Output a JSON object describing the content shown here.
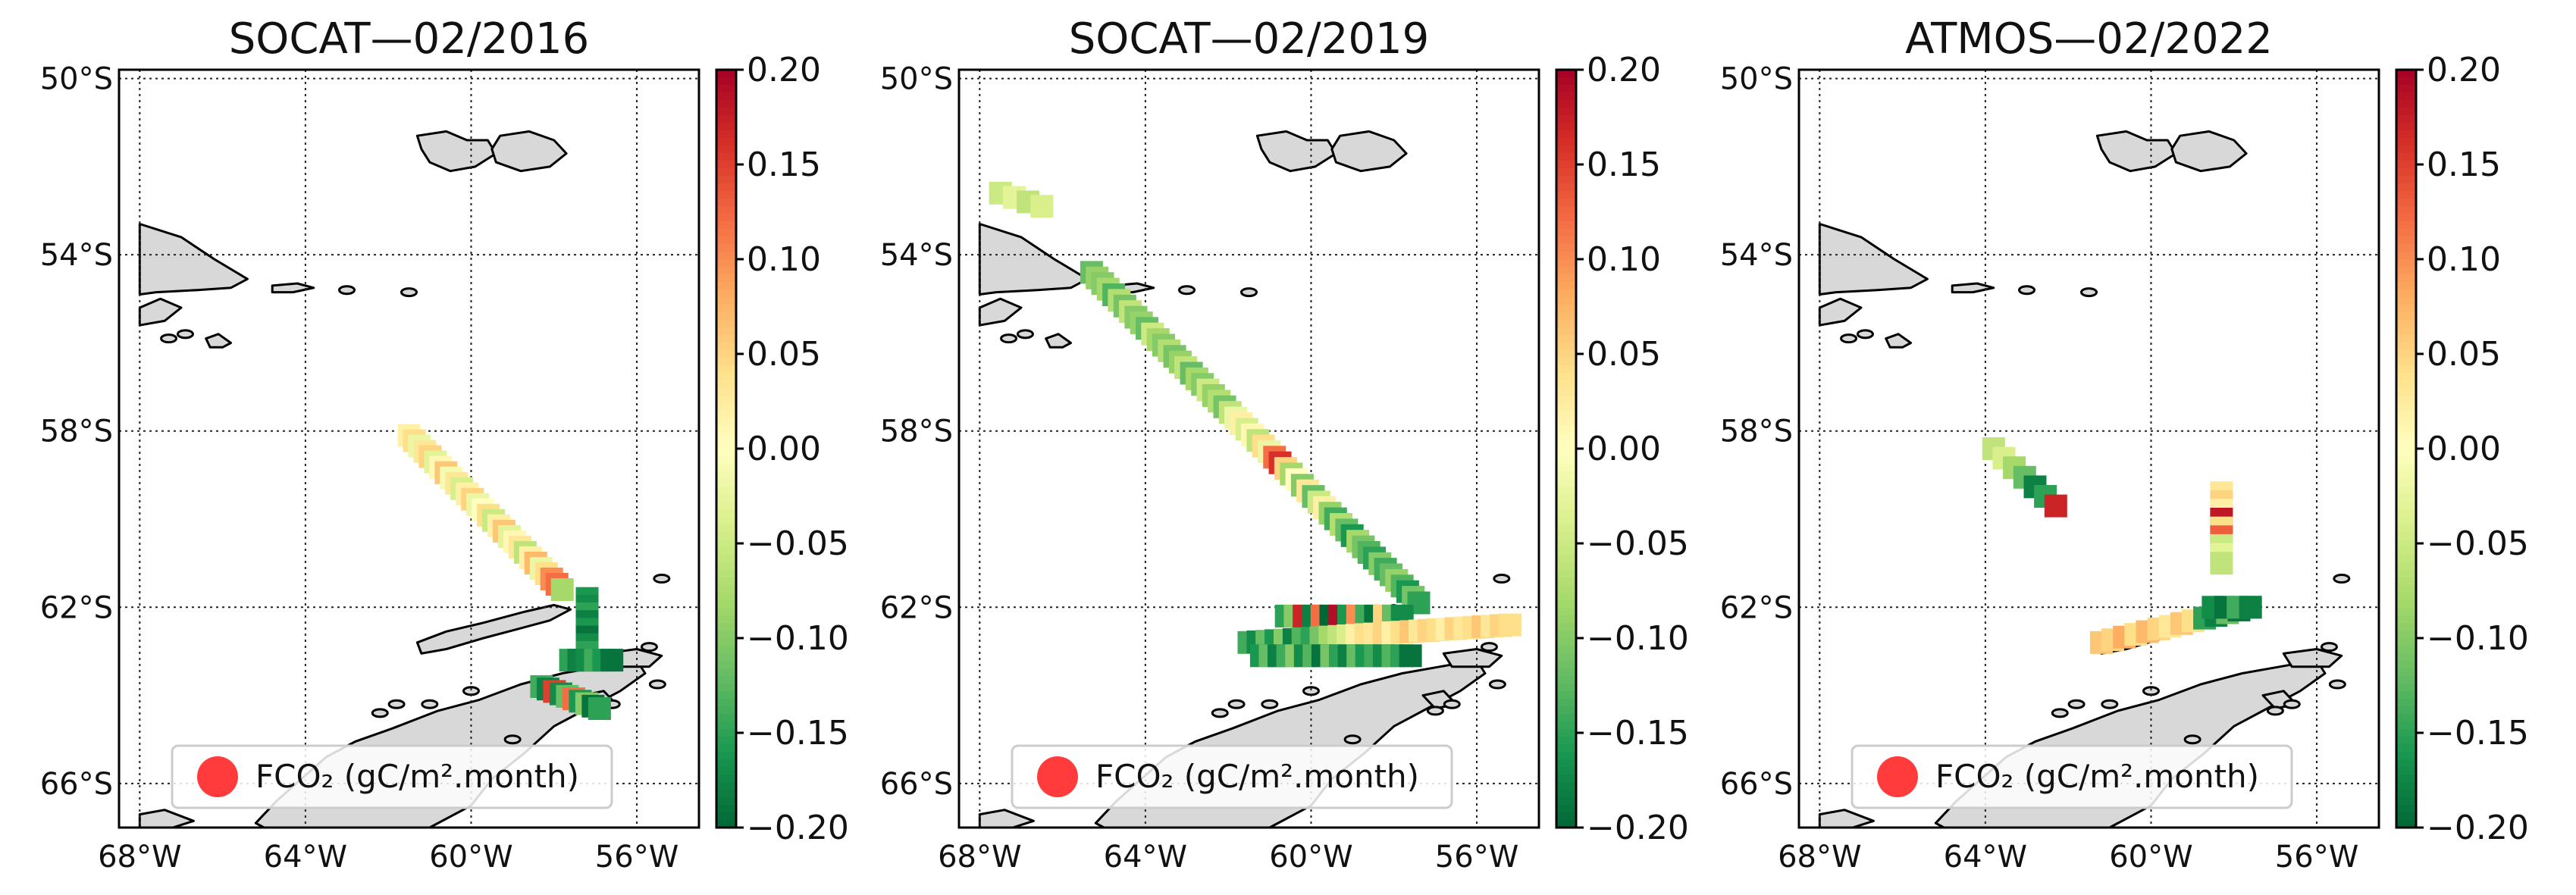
{
  "chart_data": [
    {
      "type": "map",
      "title": "SOCAT—02/2016",
      "x_ticks": [
        "68°W",
        "64°W",
        "60°W",
        "56°W"
      ],
      "y_ticks": [
        "50°S",
        "54°S",
        "58°S",
        "62°S",
        "66°S"
      ],
      "xlim": [
        -68,
        -55
      ],
      "ylim": [
        -67,
        -50
      ],
      "colorbar": {
        "label_ticks": [
          "0.20",
          "0.15",
          "0.10",
          "0.05",
          "0.00",
          "−0.05",
          "−0.10",
          "−0.15",
          "−0.20"
        ],
        "vmin": -0.2,
        "vmax": 0.2,
        "cmap": "RdYlGn"
      },
      "legend": "FCO₂ (gC/m².month)",
      "tracks": [
        {
          "lon_start": -61.5,
          "lat_start": -58.1,
          "lon_end": -57.8,
          "lat_end": -61.6,
          "n": 30,
          "values": [
            0.02,
            0.04,
            -0.02,
            0.03,
            0.05,
            -0.03,
            0.01,
            0.06,
            -0.01,
            0.03,
            -0.04,
            0.02,
            0.05,
            -0.02,
            0.0,
            0.04,
            -0.05,
            0.02,
            0.06,
            -0.03,
            0.01,
            0.03,
            -0.06,
            0.02,
            0.07,
            -0.02,
            0.04,
            0.1,
            0.12,
            -0.08
          ]
        },
        {
          "lon_start": -57.2,
          "lat_start": -61.8,
          "lon_end": -57.2,
          "lat_end": -63.2,
          "n": 9,
          "values": [
            -0.16,
            -0.17,
            -0.15,
            -0.18,
            -0.16,
            -0.19,
            -0.17,
            -0.15,
            -0.18
          ]
        },
        {
          "lon_start": -57.6,
          "lat_start": -63.2,
          "lon_end": -56.6,
          "lat_end": -63.2,
          "n": 6,
          "values": [
            -0.15,
            -0.18,
            -0.17,
            -0.14,
            -0.16,
            -0.19
          ]
        },
        {
          "lon_start": -58.3,
          "lat_start": -63.8,
          "lon_end": -56.9,
          "lat_end": -64.3,
          "n": 10,
          "values": [
            -0.14,
            -0.18,
            0.15,
            -0.17,
            -0.12,
            0.12,
            -0.16,
            -0.1,
            -0.19,
            -0.15
          ]
        }
      ]
    },
    {
      "type": "map",
      "title": "SOCAT—02/2019",
      "x_ticks": [
        "68°W",
        "64°W",
        "60°W",
        "56°W"
      ],
      "y_ticks": [
        "50°S",
        "54°S",
        "58°S",
        "62°S",
        "66°S"
      ],
      "xlim": [
        -68,
        -55
      ],
      "ylim": [
        -67,
        -50
      ],
      "colorbar": {
        "label_ticks": [
          "0.20",
          "0.15",
          "0.10",
          "0.05",
          "0.00",
          "−0.05",
          "−0.10",
          "−0.15",
          "−0.20"
        ],
        "vmin": -0.2,
        "vmax": 0.2,
        "cmap": "RdYlGn"
      },
      "legend": "FCO₂ (gC/m².month)",
      "tracks": [
        {
          "lon_start": -67.5,
          "lat_start": -52.6,
          "lon_end": -66.5,
          "lat_end": -52.9,
          "n": 4,
          "values": [
            -0.05,
            -0.03,
            -0.06,
            -0.04
          ]
        },
        {
          "lon_start": -65.3,
          "lat_start": -54.4,
          "lon_end": -57.4,
          "lat_end": -61.9,
          "n": 60,
          "values": [
            -0.12,
            -0.09,
            -0.1,
            -0.08,
            -0.13,
            -0.07,
            -0.11,
            -0.06,
            -0.1,
            -0.09,
            -0.12,
            -0.05,
            -0.08,
            -0.1,
            -0.07,
            -0.11,
            -0.09,
            -0.06,
            -0.12,
            -0.08,
            -0.1,
            -0.05,
            -0.09,
            -0.07,
            -0.11,
            -0.06,
            -0.02,
            0.02,
            -0.04,
            0.01,
            -0.06,
            0.04,
            -0.02,
            0.12,
            0.16,
            0.05,
            -0.08,
            0.0,
            -0.1,
            0.03,
            -0.12,
            -0.05,
            0.02,
            -0.09,
            -0.14,
            -0.07,
            -0.12,
            -0.16,
            -0.08,
            -0.11,
            -0.13,
            -0.15,
            -0.1,
            -0.14,
            -0.12,
            -0.09,
            -0.13,
            -0.16,
            -0.11,
            -0.15
          ]
        },
        {
          "lon_start": -60.6,
          "lat_start": -62.2,
          "lon_end": -57.8,
          "lat_end": -62.2,
          "n": 14,
          "values": [
            -0.15,
            -0.1,
            0.17,
            -0.18,
            0.12,
            -0.2,
            0.19,
            -0.16,
            0.1,
            -0.14,
            -0.19,
            0.05,
            -0.12,
            -0.17
          ]
        },
        {
          "lon_start": -61.5,
          "lat_start": -62.8,
          "lon_end": -55.2,
          "lat_end": -62.4,
          "n": 30,
          "values": [
            -0.14,
            -0.17,
            -0.12,
            -0.16,
            -0.1,
            -0.18,
            -0.13,
            -0.15,
            -0.11,
            -0.08,
            -0.06,
            -0.04,
            0.02,
            0.04,
            0.03,
            0.05,
            0.02,
            0.04,
            0.06,
            0.03,
            0.05,
            0.04,
            0.02,
            0.05,
            0.03,
            0.04,
            0.06,
            0.03,
            0.05,
            0.04
          ]
        },
        {
          "lon_start": -61.2,
          "lat_start": -63.1,
          "lon_end": -57.6,
          "lat_end": -63.1,
          "n": 18,
          "values": [
            -0.16,
            -0.12,
            -0.18,
            -0.14,
            -0.1,
            -0.17,
            -0.13,
            -0.19,
            -0.11,
            -0.15,
            -0.18,
            -0.12,
            -0.16,
            -0.14,
            -0.17,
            -0.13,
            -0.15,
            -0.19
          ]
        }
      ]
    },
    {
      "type": "map",
      "title": "ATMOS—02/2022",
      "x_ticks": [
        "68°W",
        "64°W",
        "60°W",
        "56°W"
      ],
      "y_ticks": [
        "50°S",
        "54°S",
        "58°S",
        "62°S",
        "66°S"
      ],
      "xlim": [
        -68,
        -55
      ],
      "ylim": [
        -67,
        -50
      ],
      "colorbar": {
        "label_ticks": [
          "0.20",
          "0.15",
          "0.10",
          "0.05",
          "0.00",
          "−0.05",
          "−0.10",
          "−0.15",
          "−0.20"
        ],
        "vmin": -0.2,
        "vmax": 0.2,
        "cmap": "RdYlGn"
      },
      "legend": "FCO₂ (gC/m².month)",
      "tracks": [
        {
          "lon_start": -63.8,
          "lat_start": -58.4,
          "lon_end": -62.3,
          "lat_end": -59.7,
          "n": 7,
          "values": [
            -0.06,
            -0.04,
            -0.08,
            -0.12,
            -0.18,
            -0.15,
            0.17
          ]
        },
        {
          "lon_start": -58.3,
          "lat_start": -59.4,
          "lon_end": -58.3,
          "lat_end": -61.0,
          "n": 9,
          "values": [
            0.03,
            0.05,
            0.02,
            0.18,
            0.04,
            0.13,
            -0.05,
            -0.03,
            -0.06
          ]
        },
        {
          "lon_start": -61.2,
          "lat_start": -62.8,
          "lon_end": -57.6,
          "lat_end": -62.0,
          "n": 14,
          "values": [
            0.06,
            0.05,
            0.08,
            0.04,
            0.07,
            0.05,
            0.03,
            0.06,
            0.04,
            -0.15,
            -0.18,
            -0.12,
            -0.19,
            -0.16
          ]
        },
        {
          "lon_start": -58.5,
          "lat_start": -62.0,
          "lon_end": -57.6,
          "lat_end": -62.0,
          "n": 4,
          "values": [
            -0.17,
            -0.19,
            -0.14,
            -0.18
          ]
        }
      ]
    }
  ]
}
